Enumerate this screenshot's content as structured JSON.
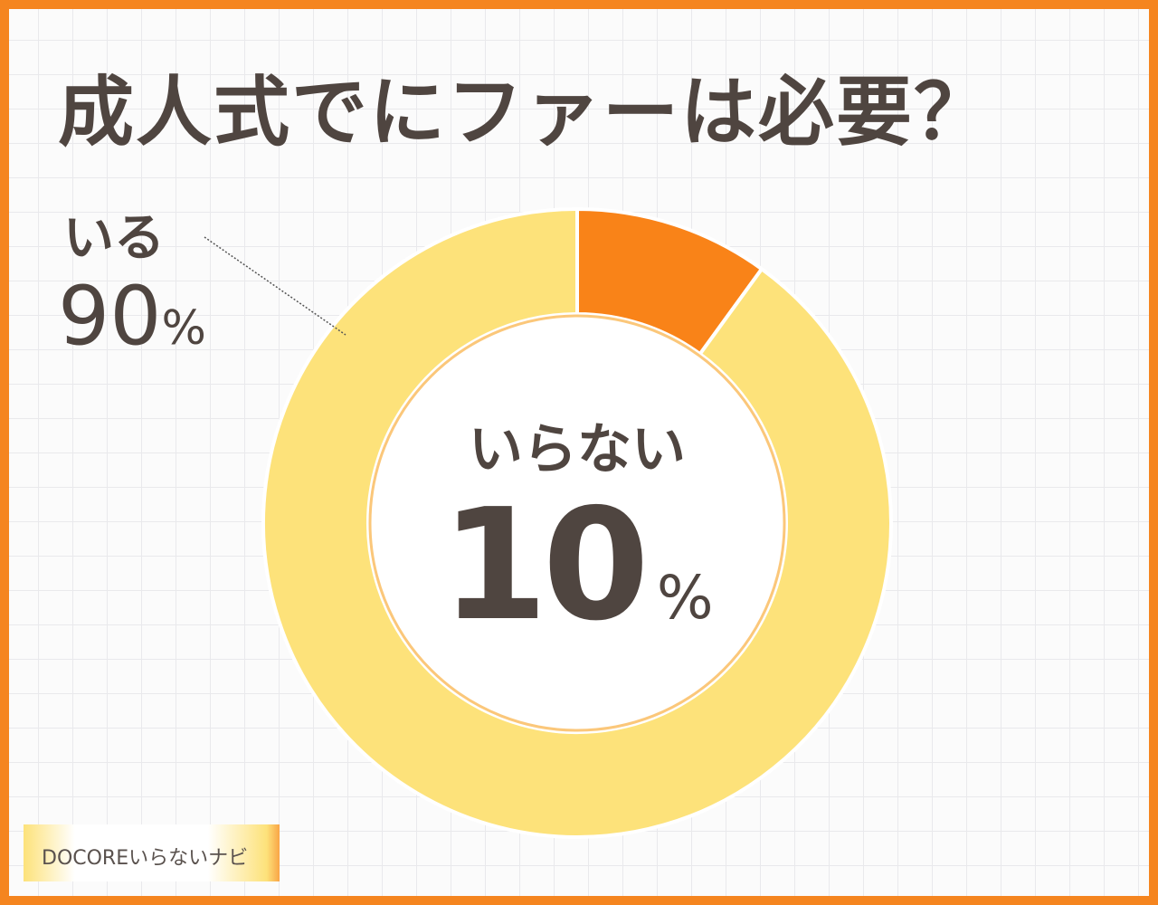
{
  "title": "成人式でにファーは必要？",
  "chart_data": {
    "type": "pie",
    "variant": "donut",
    "title": "成人式でにファーは必要？",
    "slices": [
      {
        "label": "いらない",
        "value": 10,
        "display": "10",
        "color": "#f98318"
      },
      {
        "label": "いる",
        "value": 90,
        "display": "90",
        "color": "#fde27a"
      }
    ],
    "percent_sign": "%"
  },
  "logo": {
    "text": "DOCOREいらないナビ"
  },
  "colors": {
    "border": "#f5851f",
    "text": "#4f4540"
  }
}
